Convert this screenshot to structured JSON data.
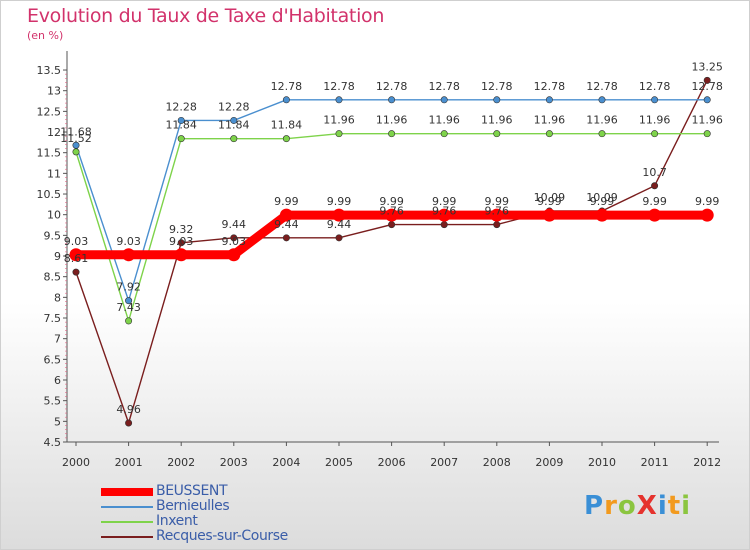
{
  "title": "Evolution du Taux de Taxe d'Habitation",
  "subtitle": "(en %)",
  "logo": {
    "text": "ProXiti",
    "letters": [
      {
        "ch": "P",
        "color": "#3a8fd6"
      },
      {
        "ch": "r",
        "color": "#f29a1e"
      },
      {
        "ch": "o",
        "color": "#8bc53f"
      },
      {
        "ch": "X",
        "color": "#e5322d"
      },
      {
        "ch": "i",
        "color": "#3a8fd6"
      },
      {
        "ch": "t",
        "color": "#f29a1e"
      },
      {
        "ch": "i",
        "color": "#8bc53f"
      }
    ]
  },
  "chart_data": {
    "type": "line",
    "title": "Evolution du Taux de Taxe d'Habitation",
    "ylabel": "(en %)",
    "xlabel": "",
    "ylim": [
      4.5,
      13.5
    ],
    "yticks": [
      "4.5",
      "5",
      "5.5",
      "6",
      "6.5",
      "7",
      "7.5",
      "8",
      "8.5",
      "9",
      "9.5",
      "10",
      "10.5",
      "11",
      "11.5",
      "12",
      "12.5",
      "13",
      "13.5"
    ],
    "x": [
      "2000",
      "2001",
      "2002",
      "2003",
      "2004",
      "2005",
      "2006",
      "2007",
      "2008",
      "2009",
      "2010",
      "2011",
      "2012"
    ],
    "grid": false,
    "legend_position": "bottom-left",
    "series": [
      {
        "name": "BEUSSENT",
        "color": "#ff0000",
        "values": [
          9.03,
          9.03,
          9.03,
          9.03,
          9.99,
          9.99,
          9.99,
          9.99,
          9.99,
          9.99,
          9.99,
          9.99,
          9.99
        ],
        "labels": [
          "9.03",
          "9.03",
          "9.03",
          "9.03",
          "9.99",
          "9.99",
          "9.99",
          "9.99",
          "9.99",
          "9.99",
          "9.99",
          "9.99",
          "9.99"
        ]
      },
      {
        "name": "Bernieulles",
        "color": "#4a8fcf",
        "values": [
          11.68,
          7.92,
          12.28,
          12.28,
          12.78,
          12.78,
          12.78,
          12.78,
          12.78,
          12.78,
          12.78,
          12.78,
          12.78
        ],
        "labels": [
          "11.68",
          "7.92",
          "12.28",
          "12.28",
          "12.78",
          "12.78",
          "12.78",
          "12.78",
          "12.78",
          "12.78",
          "12.78",
          "12.78",
          "12.78"
        ]
      },
      {
        "name": "Inxent",
        "color": "#7ed34a",
        "values": [
          11.52,
          7.43,
          11.84,
          11.84,
          11.84,
          11.96,
          11.96,
          11.96,
          11.96,
          11.96,
          11.96,
          11.96,
          11.96
        ],
        "labels": [
          "11.52",
          "7.43",
          "11.84",
          "11.84",
          "11.84",
          "11.96",
          "11.96",
          "11.96",
          "11.96",
          "11.96",
          "11.96",
          "11.96",
          "11.96"
        ]
      },
      {
        "name": "Recques-sur-Course",
        "color": "#7a1e1e",
        "values": [
          8.61,
          4.96,
          9.32,
          9.44,
          9.44,
          9.44,
          9.76,
          9.76,
          9.76,
          10.09,
          10.09,
          10.7,
          13.25
        ],
        "labels": [
          "8.61",
          "4.96",
          "9.32",
          "9.44",
          "9.44",
          "9.44",
          "9.76",
          "9.76",
          "9.76",
          "10.09",
          "10.09",
          "10.7",
          "13.25"
        ]
      }
    ]
  }
}
